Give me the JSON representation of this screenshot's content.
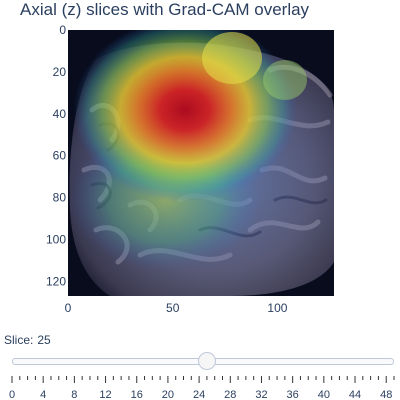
{
  "figure": {
    "title": "Axial (z) slices with Grad-CAM overlay"
  },
  "chart_data": {
    "type": "heatmap",
    "title": "Axial (z) slices with Grad-CAM overlay",
    "xlabel": "",
    "ylabel": "",
    "x_range": [
      0,
      127
    ],
    "y_range": [
      127,
      0
    ],
    "y_reversed": true,
    "x_ticks": [
      0,
      50,
      100
    ],
    "y_ticks": [
      0,
      20,
      40,
      60,
      80,
      100,
      120
    ],
    "background_image": "grayscale brain MRI axial slice",
    "overlay": "Grad-CAM jet colormap, semi-transparent",
    "hotspot_center": [
      50,
      40
    ],
    "hotspot_peak_label": "high activation (red) around x≈50, y≈40",
    "colors": {
      "hot": "#d62728",
      "warm": "#ffd200",
      "mid": "#44c86a",
      "cool": "#2a6fd6",
      "background": "#0b0f1e"
    }
  },
  "slider": {
    "label": "Slice:",
    "value": "25",
    "value_number": 25,
    "min": 0,
    "max": 49,
    "tick_labels": [
      "0",
      "4",
      "8",
      "12",
      "16",
      "20",
      "24",
      "28",
      "32",
      "36",
      "40",
      "44",
      "48"
    ]
  }
}
